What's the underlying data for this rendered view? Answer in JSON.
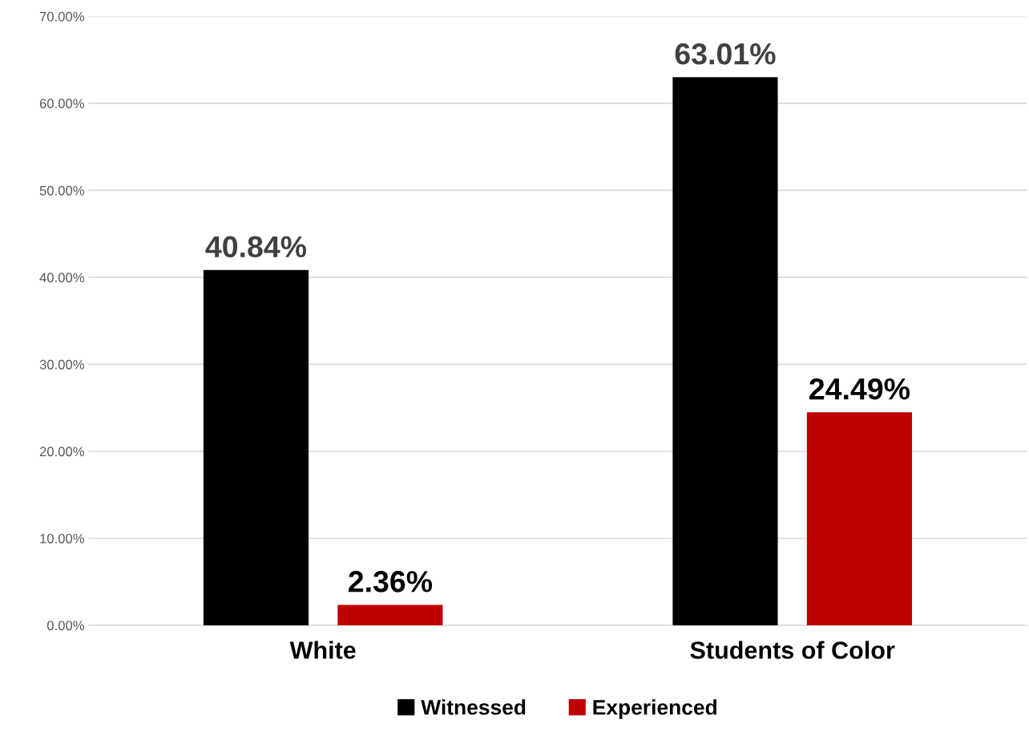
{
  "chart_data": {
    "type": "bar",
    "categories": [
      "White",
      "Students of Color"
    ],
    "series": [
      {
        "name": "Witnessed",
        "color": "#000000",
        "values": [
          40.84,
          63.01
        ],
        "value_labels": [
          "40.84%",
          "63.01%"
        ]
      },
      {
        "name": "Experienced",
        "color": "#c00000",
        "values": [
          2.36,
          24.49
        ],
        "value_labels": [
          "2.36%",
          "24.49%"
        ]
      }
    ],
    "ylim": [
      0,
      70
    ],
    "yticks": [
      {
        "value": 0,
        "label": "0.00%"
      },
      {
        "value": 10,
        "label": "10.00%"
      },
      {
        "value": 20,
        "label": "20.00%"
      },
      {
        "value": 30,
        "label": "30.00%"
      },
      {
        "value": 40,
        "label": "40.00%"
      },
      {
        "value": 50,
        "label": "50.00%"
      },
      {
        "value": 60,
        "label": "60.00%"
      },
      {
        "value": 70,
        "label": "70.00%"
      }
    ],
    "grid": "y",
    "legend": "bottom"
  }
}
